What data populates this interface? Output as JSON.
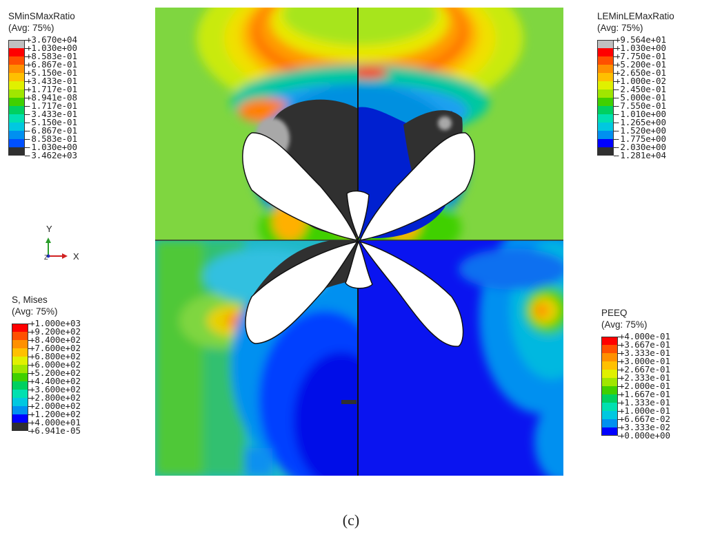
{
  "caption": "(c)",
  "triad": {
    "y_label": "Y",
    "z_label": "Z",
    "x_label": "X"
  },
  "legends": {
    "sminsmax": {
      "title": "SMinSMaxRatio",
      "subtitle": "(Avg: 75%)",
      "labels": [
        "+3.670e+04",
        "+1.030e+00",
        "+8.583e-01",
        "+6.867e-01",
        "+5.150e-01",
        "+3.433e-01",
        "+1.717e-01",
        "+8.941e-08",
        "-1.717e-01",
        "-3.433e-01",
        "-5.150e-01",
        "-6.867e-01",
        "-8.583e-01",
        "-1.030e+00",
        "-3.462e+03"
      ],
      "colors": [
        "#c0c0c0",
        "#ff0000",
        "#ff5000",
        "#ff9000",
        "#ffc000",
        "#e0f000",
        "#a0e600",
        "#40d000",
        "#00d060",
        "#00e0b0",
        "#00c8e0",
        "#0090f0",
        "#0050ff",
        "#303030"
      ]
    },
    "leminlemax": {
      "title": "LEMinLEMaxRatio",
      "subtitle": "(Avg: 75%)",
      "labels": [
        "+9.564e+01",
        "+1.030e+00",
        "+7.750e-01",
        "+5.200e-01",
        "+2.650e-01",
        "+1.000e-02",
        "-2.450e-01",
        "-5.000e-01",
        "-7.550e-01",
        "-1.010e+00",
        "-1.265e+00",
        "-1.520e+00",
        "-1.775e+00",
        "-2.030e+00",
        "-1.281e+04"
      ],
      "colors": [
        "#c0c0c0",
        "#ff0000",
        "#ff5000",
        "#ff9000",
        "#ffc000",
        "#e0f000",
        "#a0e600",
        "#40d000",
        "#00d060",
        "#00e0b0",
        "#00c8e0",
        "#0090f0",
        "#0000ff",
        "#303030"
      ]
    },
    "mises": {
      "title": "S, Mises",
      "subtitle": "(Avg: 75%)",
      "labels": [
        "+1.000e+03",
        "+9.200e+02",
        "+8.400e+02",
        "+7.600e+02",
        "+6.800e+02",
        "+6.000e+02",
        "+5.200e+02",
        "+4.400e+02",
        "+3.600e+02",
        "+2.800e+02",
        "+2.000e+02",
        "+1.200e+02",
        "+4.000e+01",
        "+6.941e-05"
      ],
      "colors": [
        "#ff0000",
        "#ff5000",
        "#ff9000",
        "#ffc000",
        "#e0f000",
        "#a0e600",
        "#40d000",
        "#00d060",
        "#00e0b0",
        "#00c8e0",
        "#0090f0",
        "#0000ff",
        "#303030"
      ]
    },
    "peeq": {
      "title": "PEEQ",
      "subtitle": "(Avg: 75%)",
      "labels": [
        "+4.000e-01",
        "+3.667e-01",
        "+3.333e-01",
        "+3.000e-01",
        "+2.667e-01",
        "+2.333e-01",
        "+2.000e-01",
        "+1.667e-01",
        "+1.333e-01",
        "+1.000e-01",
        "+6.667e-02",
        "+3.333e-02",
        "+0.000e+00"
      ],
      "colors": [
        "#ff0000",
        "#ff5000",
        "#ff9000",
        "#ffc000",
        "#e0f000",
        "#a0e600",
        "#40d000",
        "#00d060",
        "#00e0b0",
        "#00c8e0",
        "#0090f0",
        "#0000ff"
      ]
    }
  }
}
